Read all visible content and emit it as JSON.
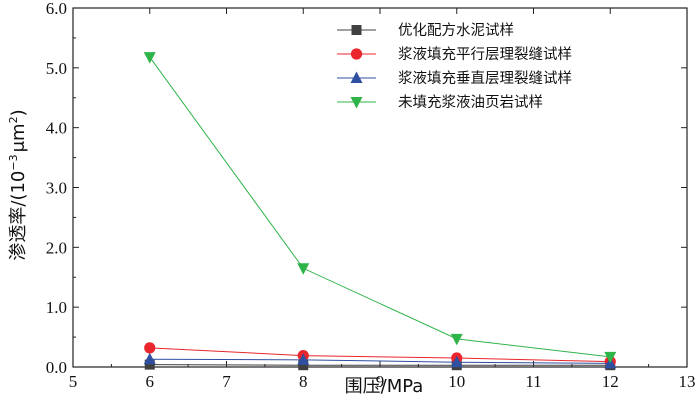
{
  "chart_data": {
    "type": "line",
    "title": "",
    "xlabel": "围压/MPa",
    "ylabel_prefix": "渗透率/(10",
    "ylabel_exp": "−3",
    "ylabel_unit": "μm",
    "ylabel_exp2": "2",
    "ylabel_suffix": ")",
    "xlim": [
      5,
      13
    ],
    "ylim": [
      0.0,
      6.0
    ],
    "x_ticks": [
      5,
      6,
      7,
      8,
      9,
      10,
      11,
      12,
      13
    ],
    "y_ticks": [
      "0.0",
      "1.0",
      "2.0",
      "3.0",
      "4.0",
      "5.0",
      "6.0"
    ],
    "grid": false,
    "legend_position": "top-right",
    "x": [
      6,
      8,
      10,
      12
    ],
    "series": [
      {
        "name": "优化配方水泥试样",
        "values": [
          0.04,
          0.03,
          0.03,
          0.03
        ],
        "color": "#404040",
        "marker": "square"
      },
      {
        "name": "浆液填充平行层理裂缝试样",
        "values": [
          0.32,
          0.19,
          0.15,
          0.09
        ],
        "color": "#e8262b",
        "marker": "circle"
      },
      {
        "name": "浆液填充垂直层理裂缝试样",
        "values": [
          0.13,
          0.12,
          0.08,
          0.06
        ],
        "color": "#2f4fa0",
        "marker": "triangle-up"
      },
      {
        "name": "未填充浆液油页岩试样",
        "values": [
          5.18,
          1.65,
          0.47,
          0.17
        ],
        "color": "#2fb44a",
        "marker": "triangle-down"
      }
    ]
  }
}
